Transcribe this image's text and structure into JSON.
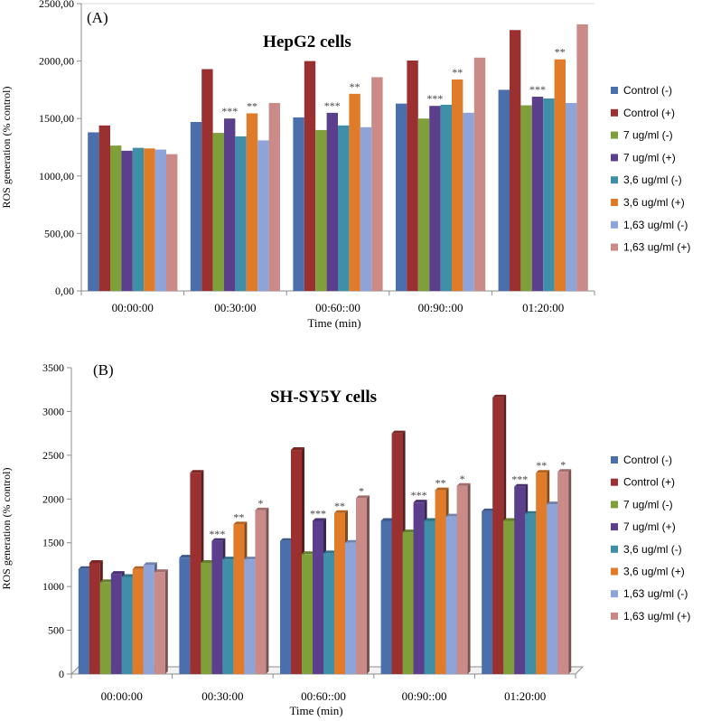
{
  "chart_data": [
    {
      "type": "bar",
      "panel_label": "(A)",
      "title": "HepG2 cells",
      "xlabel": "Time (min)",
      "ylabel": "ROS generation (% control)",
      "ylim": [
        0,
        2500
      ],
      "yticks": [
        "0,00",
        "500,00",
        "1000,00",
        "1500,00",
        "2000,00",
        "2500,00"
      ],
      "categories": [
        "00:00:00",
        "00:30:00",
        "00:60::00",
        "00:90::00",
        "01:20:00"
      ],
      "series": [
        {
          "name": "Control (-)",
          "values": [
            1380,
            1470,
            1510,
            1630,
            1750
          ]
        },
        {
          "name": "Control (+)",
          "values": [
            1440,
            1930,
            2000,
            2005,
            2270
          ]
        },
        {
          "name": "7 ug/ml (-)",
          "values": [
            1265,
            1375,
            1400,
            1500,
            1615
          ]
        },
        {
          "name": "7 ug/ml (+)",
          "values": [
            1220,
            1500,
            1550,
            1610,
            1690
          ]
        },
        {
          "name": "3,6 ug/ml (-)",
          "values": [
            1245,
            1345,
            1440,
            1620,
            1675
          ]
        },
        {
          "name": "3,6 ug/ml (+)",
          "values": [
            1240,
            1545,
            1715,
            1840,
            2015
          ]
        },
        {
          "name": "1,63 ug/ml (-)",
          "values": [
            1230,
            1310,
            1425,
            1550,
            1635
          ]
        },
        {
          "name": "1,63 ug/ml (+)",
          "values": [
            1190,
            1635,
            1860,
            2030,
            2320
          ]
        }
      ],
      "annotations": [
        {
          "category": 1,
          "series": 3,
          "text": "***"
        },
        {
          "category": 1,
          "series": 5,
          "text": "**"
        },
        {
          "category": 2,
          "series": 3,
          "text": "***"
        },
        {
          "category": 2,
          "series": 5,
          "text": "**"
        },
        {
          "category": 3,
          "series": 3,
          "text": "***"
        },
        {
          "category": 3,
          "series": 5,
          "text": "**"
        },
        {
          "category": 4,
          "series": 3,
          "text": "***"
        },
        {
          "category": 4,
          "series": 5,
          "text": "**"
        }
      ]
    },
    {
      "type": "bar",
      "panel_label": "(B)",
      "title": "SH-SY5Y cells",
      "xlabel": "Time (min)",
      "ylabel": "ROS generation (% control)",
      "ylim": [
        0,
        3500
      ],
      "yticks": [
        "0",
        "500",
        "1000",
        "1500",
        "2000",
        "2500",
        "3000",
        "3500"
      ],
      "categories": [
        "00:00:00",
        "00:30:00",
        "00:60::00",
        "00:90::00",
        "01:20:00"
      ],
      "series": [
        {
          "name": "Control (-)",
          "values": [
            1200,
            1330,
            1520,
            1750,
            1860
          ]
        },
        {
          "name": "Control (+)",
          "values": [
            1270,
            2300,
            2560,
            2750,
            3160
          ]
        },
        {
          "name": "7 ug/ml (-)",
          "values": [
            1050,
            1270,
            1370,
            1620,
            1750
          ]
        },
        {
          "name": "7 ug/ml (+)",
          "values": [
            1145,
            1520,
            1750,
            1960,
            2140
          ]
        },
        {
          "name": "3,6 ug/ml (-)",
          "values": [
            1110,
            1310,
            1380,
            1750,
            1830
          ]
        },
        {
          "name": "3,6 ug/ml (+)",
          "values": [
            1200,
            1710,
            1840,
            2100,
            2300
          ]
        },
        {
          "name": "1,63 ug/ml (-)",
          "values": [
            1245,
            1310,
            1500,
            1800,
            1940
          ]
        },
        {
          "name": "1,63 ug/ml (+)",
          "values": [
            1165,
            1870,
            2010,
            2150,
            2310
          ]
        }
      ],
      "annotations": [
        {
          "category": 1,
          "series": 3,
          "text": "***"
        },
        {
          "category": 1,
          "series": 5,
          "text": "**"
        },
        {
          "category": 1,
          "series": 7,
          "text": "*"
        },
        {
          "category": 2,
          "series": 3,
          "text": "***"
        },
        {
          "category": 2,
          "series": 5,
          "text": "**"
        },
        {
          "category": 2,
          "series": 7,
          "text": "*"
        },
        {
          "category": 3,
          "series": 3,
          "text": "***"
        },
        {
          "category": 3,
          "series": 5,
          "text": "**"
        },
        {
          "category": 3,
          "series": 7,
          "text": "*"
        },
        {
          "category": 4,
          "series": 3,
          "text": "***"
        },
        {
          "category": 4,
          "series": 5,
          "text": "**"
        },
        {
          "category": 4,
          "series": 7,
          "text": "*"
        }
      ]
    }
  ],
  "colors": {
    "series": [
      "#4a6fac",
      "#9a3130",
      "#7f9f3a",
      "#5b3f8c",
      "#3f8fa8",
      "#e07b2a",
      "#8ea4d8",
      "#c98a88"
    ],
    "axis": "#8c8c8c",
    "gridline": "#d9d9d9"
  }
}
